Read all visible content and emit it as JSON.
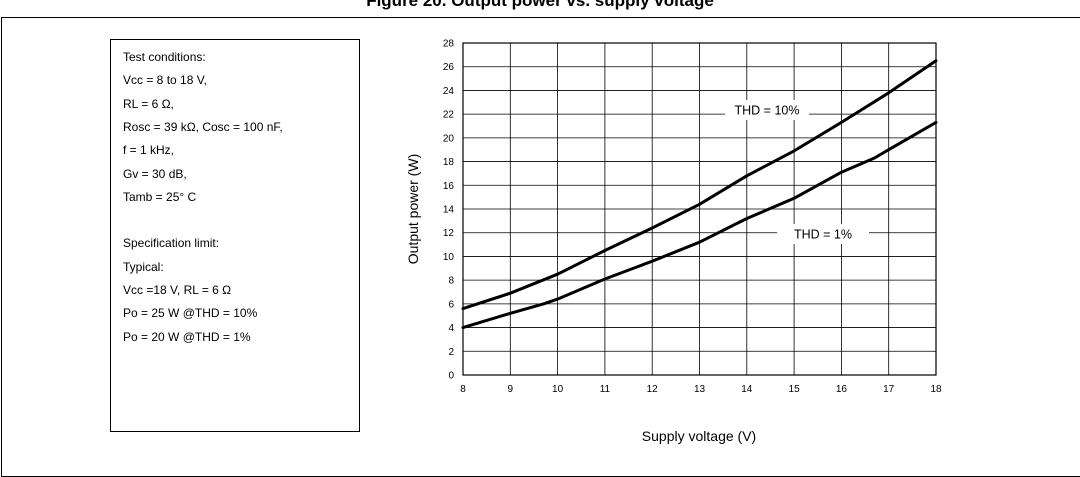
{
  "figure": {
    "title": "Figure 20. Output power vs. supply voltage"
  },
  "conditions": {
    "lines": [
      "Test conditions:",
      "Vcc = 8 to 18 V,",
      "RL = 6 Ω,",
      "Rosc = 39 kΩ, Cosc = 100 nF,",
      "f = 1 kHz,",
      "Gv = 30 dB,",
      "Tamb = 25° C",
      "",
      "Specification limit:",
      "Typical:",
      "Vcc =18 V, RL = 6 Ω",
      "Po = 25 W @THD = 10%",
      "Po = 20 W @THD = 1%"
    ]
  },
  "chart_data": {
    "type": "line",
    "title": "Figure 20. Output power vs. supply voltage",
    "xlabel": "Supply voltage (V)",
    "ylabel": "Output power (W)",
    "xlim": [
      8,
      18
    ],
    "ylim": [
      0,
      28
    ],
    "xticks": [
      8,
      9,
      10,
      11,
      12,
      13,
      14,
      15,
      16,
      17,
      18
    ],
    "yticks": [
      0,
      2,
      4,
      6,
      8,
      10,
      12,
      14,
      16,
      18,
      20,
      22,
      24,
      26,
      28
    ],
    "grid": true,
    "legend": "none",
    "series": [
      {
        "name": "THD = 10%",
        "color": "#000000",
        "x": [
          8,
          9,
          10,
          11,
          12,
          13,
          14,
          15,
          16,
          17,
          18
        ],
        "y": [
          5.6,
          6.9,
          8.5,
          10.5,
          12.4,
          14.4,
          16.8,
          18.9,
          21.3,
          23.8,
          26.5
        ]
      },
      {
        "name": "THD = 1%",
        "color": "#000000",
        "x": [
          8,
          9,
          9.7,
          10,
          11,
          12,
          13,
          14,
          15,
          16,
          16.7,
          17,
          18
        ],
        "y": [
          4.0,
          5.2,
          6.0,
          6.4,
          8.1,
          9.6,
          11.2,
          13.2,
          14.9,
          17.1,
          18.3,
          19.0,
          21.3
        ]
      }
    ]
  }
}
